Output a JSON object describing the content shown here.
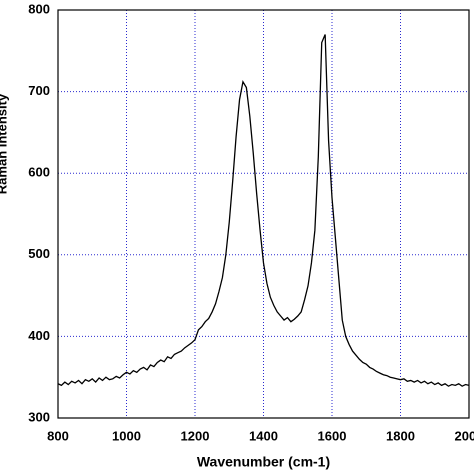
{
  "chart_data": {
    "type": "line",
    "xlabel": "Wavenumber (cm-1)",
    "ylabel": "Raman Intensity",
    "x": [
      800,
      810,
      820,
      830,
      840,
      850,
      860,
      870,
      880,
      890,
      900,
      910,
      920,
      930,
      940,
      950,
      960,
      970,
      980,
      990,
      1000,
      1010,
      1020,
      1030,
      1040,
      1050,
      1060,
      1070,
      1080,
      1090,
      1100,
      1110,
      1120,
      1130,
      1140,
      1150,
      1160,
      1170,
      1180,
      1190,
      1200,
      1210,
      1220,
      1230,
      1240,
      1250,
      1260,
      1270,
      1280,
      1290,
      1300,
      1310,
      1320,
      1330,
      1340,
      1350,
      1360,
      1370,
      1380,
      1390,
      1400,
      1410,
      1420,
      1430,
      1440,
      1450,
      1460,
      1470,
      1480,
      1490,
      1500,
      1510,
      1520,
      1530,
      1540,
      1550,
      1560,
      1570,
      1580,
      1590,
      1600,
      1610,
      1620,
      1630,
      1640,
      1650,
      1660,
      1670,
      1680,
      1690,
      1700,
      1710,
      1720,
      1730,
      1740,
      1750,
      1760,
      1770,
      1780,
      1790,
      1800,
      1810,
      1820,
      1830,
      1840,
      1850,
      1860,
      1870,
      1880,
      1890,
      1900,
      1910,
      1920,
      1930,
      1940,
      1950,
      1960,
      1970,
      1980,
      1990,
      2000
    ],
    "series": [
      {
        "color": "#000000",
        "values": [
          342,
          340,
          344,
          341,
          345,
          343,
          346,
          342,
          347,
          345,
          348,
          344,
          349,
          346,
          350,
          347,
          348,
          351,
          349,
          353,
          356,
          354,
          358,
          356,
          360,
          362,
          359,
          365,
          363,
          368,
          371,
          369,
          375,
          373,
          378,
          380,
          382,
          386,
          389,
          392,
          396,
          408,
          412,
          418,
          422,
          430,
          440,
          455,
          472,
          500,
          540,
          590,
          645,
          690,
          712,
          705,
          670,
          625,
          575,
          530,
          490,
          465,
          448,
          438,
          430,
          425,
          420,
          423,
          418,
          421,
          425,
          430,
          445,
          462,
          490,
          530,
          620,
          760,
          770,
          640,
          570,
          520,
          470,
          420,
          400,
          390,
          382,
          377,
          372,
          368,
          366,
          362,
          360,
          357,
          355,
          353,
          352,
          350,
          349,
          348,
          347,
          348,
          345,
          346,
          344,
          346,
          343,
          345,
          342,
          344,
          341,
          343,
          340,
          342,
          339,
          341,
          340,
          342,
          339,
          341,
          340
        ]
      }
    ],
    "xlim": [
      800,
      2000
    ],
    "xticks": [
      800,
      1000,
      1200,
      1400,
      1600,
      1800,
      2000
    ],
    "ylim": [
      300,
      800
    ],
    "yticks": [
      300,
      400,
      500,
      600,
      700,
      800
    ],
    "grid": true
  }
}
